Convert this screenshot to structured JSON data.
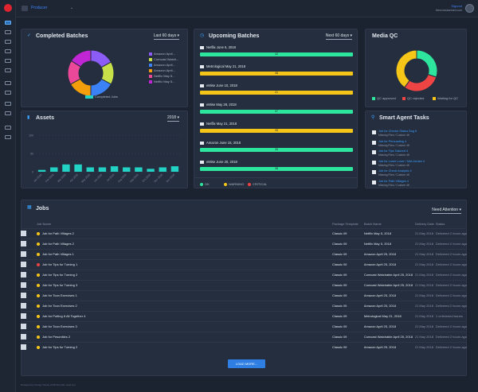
{
  "app": {
    "title": "Producer",
    "user_link": "Signout",
    "user_sub": "thecrowsbanned.com"
  },
  "completed_batches": {
    "title": "Completed Batches",
    "range": "Last 60 days",
    "legend": [
      {
        "label": "Amazon April...",
        "color": "#8b5cf6"
      },
      {
        "label": "Comcast Watch...",
        "color": "#c7e04a"
      },
      {
        "label": "Amazon April...",
        "color": "#3b82f6"
      },
      {
        "label": "Amazon April...",
        "color": "#f59e0b"
      },
      {
        "label": "Netflix May 5...",
        "color": "#ec4899"
      },
      {
        "label": "Netflix May 5...",
        "color": "#c026d3"
      }
    ],
    "footer_label": "Completed Jobs",
    "footer_color": "#22d3c5"
  },
  "upcoming_batches": {
    "title": "Upcoming Batches",
    "range": "Next 60 days",
    "items": [
      {
        "label": "Netflix June 5, 2018",
        "pct": "42",
        "color": "#2ee59d"
      },
      {
        "label": "Metrological May 21, 2018",
        "pct": "48",
        "color": "#f5c518"
      },
      {
        "label": "eMise June 10, 2018",
        "pct": "21",
        "color": "#f5c518"
      },
      {
        "label": "eMise May 28, 2018",
        "pct": "37",
        "color": "#2ee59d"
      },
      {
        "label": "Netflix May 21, 2018",
        "pct": "26",
        "color": "#f5c518"
      },
      {
        "label": "Amazon June 15, 2018",
        "pct": "35",
        "color": "#2ee59d"
      },
      {
        "label": "eMise June 20, 2018",
        "pct": "38",
        "color": "#2ee59d"
      }
    ],
    "legend": [
      {
        "label": "OK",
        "color": "#2ee59d"
      },
      {
        "label": "WARNING",
        "color": "#f5c518"
      },
      {
        "label": "CRITICAL",
        "color": "#ef4444"
      }
    ]
  },
  "media_qc": {
    "title": "Media QC",
    "legend": [
      {
        "label": "QC approved",
        "color": "#2ee59d"
      },
      {
        "label": "QC rejected",
        "color": "#ef4444"
      },
      {
        "label": "Waiting for QC",
        "color": "#f5c518"
      }
    ]
  },
  "assets": {
    "title": "Assets",
    "year": "2018",
    "ticks": [
      "100",
      "50",
      "0"
    ]
  },
  "chart_data": [
    {
      "type": "pie",
      "title": "Completed Batches",
      "categories": [
        "Amazon April...",
        "Comcast Watch...",
        "Amazon April...",
        "Amazon April...",
        "Netflix May 5...",
        "Netflix May 5..."
      ],
      "values": [
        17,
        16,
        17,
        17,
        17,
        16
      ]
    },
    {
      "type": "pie",
      "title": "Media QC",
      "categories": [
        "QC approved",
        "QC rejected",
        "Waiting for QC"
      ],
      "values": [
        30,
        30,
        40
      ]
    },
    {
      "type": "bar",
      "title": "Assets",
      "categories": [
        "Jan 2018",
        "Feb 2018",
        "Mar 2018",
        "Apr 2018",
        "May 2018",
        "Jun 2018",
        "Jul 2018",
        "Aug 2018",
        "Sep 2018",
        "Oct 2018",
        "Nov 2018",
        "Dec 2018"
      ],
      "values": [
        5,
        12,
        20,
        20,
        12,
        12,
        15,
        12,
        12,
        8,
        12,
        15
      ],
      "ylim": [
        0,
        100
      ]
    }
  ],
  "smart_tasks": {
    "title": "Smart Agent Tasks",
    "items": [
      {
        "title": "Job for Checks Status Bug 8",
        "sub": "Missing Files / Custom 4K"
      },
      {
        "title": "Job for Persuading 4",
        "sub": "Missing Files / Custom 4K"
      },
      {
        "title": "Job for Tips Tailored 4",
        "sub": "Missing Files / Custom 4K"
      },
      {
        "title": "Job for Loser Lover / Mid-Jordan 4",
        "sub": "Missing Files / Custom 4K"
      },
      {
        "title": "Job for Check Analysis 4",
        "sub": "Missing Files / Custom 4K"
      },
      {
        "title": "Job for Path Villages 4",
        "sub": "Missing Files / Custom 4K"
      }
    ]
  },
  "jobs": {
    "title": "Jobs",
    "filter": "Need Attention",
    "columns": [
      "Job Name",
      "Package Template",
      "Batch Name",
      "Delivery Date",
      "Status"
    ],
    "rows": [
      {
        "name": "Job for Path Villages 2",
        "tpl": "Classic 09",
        "batch": "Netflix May 5, 2018",
        "date": "21 May 2018",
        "status": "Delivered 2 hours ago",
        "dot": "#f5c518"
      },
      {
        "name": "Job for Path Villages 2",
        "tpl": "Classic 09",
        "batch": "Netflix May 5, 2018",
        "date": "21 May 2018",
        "status": "Delivered 2 hours ago",
        "dot": "#f5c518"
      },
      {
        "name": "Job for Path Villages 1",
        "tpl": "Classic 09",
        "batch": "Amazon April 25, 2018",
        "date": "21 May 2018",
        "status": "Delivered 2 hours ago",
        "dot": "#f5c518"
      },
      {
        "name": "Job for Tips for Turning 1",
        "tpl": "Classic 09",
        "batch": "Amazon April 25, 2018",
        "date": "21 May 2018",
        "status": "Delivered 2 hours ago",
        "dot": "#ef4444"
      },
      {
        "name": "Job for Tips for Turning 2",
        "tpl": "Classic 09",
        "batch": "Comcast Watchable April 25, 2018",
        "date": "21 May 2018",
        "status": "Delivered 2 hours ago",
        "dot": "#f5c518"
      },
      {
        "name": "Job for Tips for Turning 3",
        "tpl": "Classic 09",
        "batch": "Comcast Watchable April 25, 2018",
        "date": "21 May 2018",
        "status": "Delivered 2 hours ago",
        "dot": "#f5c518"
      },
      {
        "name": "Job for Toon Exercises 1",
        "tpl": "Classic 09",
        "batch": "Amazon April 25, 2018",
        "date": "21 May 2018",
        "status": "Delivered 2 hours ago",
        "dot": "#f5c518"
      },
      {
        "name": "Job for Toon Exercises 2",
        "tpl": "Classic 09",
        "batch": "Amazon April 25, 2018",
        "date": "21 May 2018",
        "status": "Delivered 2 hours ago",
        "dot": "#f5c518"
      },
      {
        "name": "Job for Putting It All Together 4",
        "tpl": "Classic 09",
        "batch": "Metrological May 21, 2018",
        "date": "21 May 2018",
        "status": "1 unfinished issues",
        "dot": "#f5c518"
      },
      {
        "name": "Job for Toon Exercises 3",
        "tpl": "Classic 09",
        "batch": "Amazon April 25, 2018",
        "date": "21 May 2018",
        "status": "Delivered 2 hours ago",
        "dot": "#f5c518"
      },
      {
        "name": "Job for Pesonities 2",
        "tpl": "Classic 09",
        "batch": "Comcast Watchable April 25, 2018",
        "date": "21 May 2018",
        "status": "Delivered 2 hours ago",
        "dot": "#f5c518"
      },
      {
        "name": "Job for Tips for Turning 2",
        "tpl": "Classic 09",
        "batch": "Amazon April 25, 2018",
        "date": "21 May 2018",
        "status": "Delivered 2 hours ago",
        "dot": "#f5c518"
      }
    ],
    "load_more": "LOAD MORE...",
    "footer": "Designed by Design Studio 2018 All rights reserved"
  }
}
